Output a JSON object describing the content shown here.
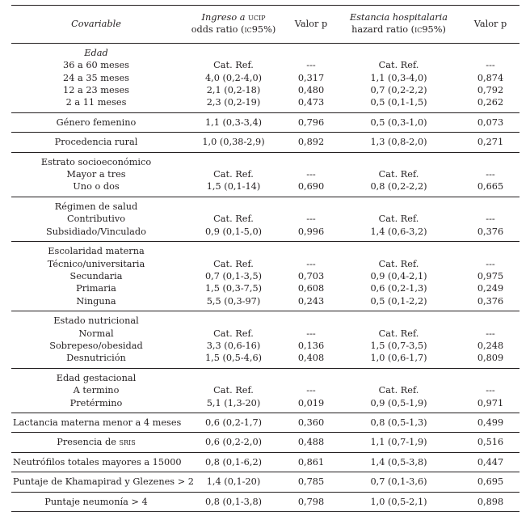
{
  "header": {
    "covariable": "Covariable",
    "ingreso_line1_a": "Ingreso a",
    "ingreso_line1_b": "ucip",
    "ingreso_line2_a": "odds ratio (",
    "ingreso_line2_b": "ic",
    "ingreso_line2_c": "95%)",
    "valor_p": "Valor p",
    "estancia_line1": "Estancia hospitalaria",
    "estancia_line2_a": "hazard ratio (",
    "estancia_line2_b": "ic",
    "estancia_line2_c": "95%)",
    "valor_p2": "Valor p"
  },
  "groups": [
    {
      "rows": [
        {
          "label": "Edad",
          "italic": true,
          "or": "",
          "p1": "",
          "hr": "",
          "p2": ""
        },
        {
          "label": "36 a 60 meses",
          "or": "Cat. Ref.",
          "p1": "---",
          "hr": "Cat. Ref.",
          "p2": "---"
        },
        {
          "label": "24 a 35 meses",
          "or": "4,0 (0,2-4,0)",
          "p1": "0,317",
          "hr": "1,1 (0,3-4,0)",
          "p2": "0,874"
        },
        {
          "label": "12 a 23 meses",
          "or": "2,1 (0,2-18)",
          "p1": "0,480",
          "hr": "0,7 (0,2-2,2)",
          "p2": "0,792"
        },
        {
          "label": "2 a 11 meses",
          "or": "2,3 (0,2-19)",
          "p1": "0,473",
          "hr": "0,5 (0,1-1,5)",
          "p2": "0,262"
        }
      ]
    },
    {
      "rows": [
        {
          "label": "Género femenino",
          "or": "1,1 (0,3-3,4)",
          "p1": "0,796",
          "hr": "0,5 (0,3-1,0)",
          "p2": "0,073"
        }
      ]
    },
    {
      "rows": [
        {
          "label": "Procedencia rural",
          "or": "1,0 (0,38-2,9)",
          "p1": "0,892",
          "hr": "1,3 (0,8-2,0)",
          "p2": "0,271"
        }
      ]
    },
    {
      "rows": [
        {
          "label": "Estrato socioeconómico",
          "or": "",
          "p1": "",
          "hr": "",
          "p2": ""
        },
        {
          "label": "Mayor a tres",
          "or": "Cat. Ref.",
          "p1": "---",
          "hr": "Cat. Ref.",
          "p2": "---"
        },
        {
          "label": "Uno o dos",
          "or": "1,5 (0,1-14)",
          "p1": "0,690",
          "hr": "0,8 (0,2-2,2)",
          "p2": "0,665"
        }
      ]
    },
    {
      "rows": [
        {
          "label": "Régimen de salud",
          "or": "",
          "p1": "",
          "hr": "",
          "p2": ""
        },
        {
          "label": "Contributivo",
          "or": "Cat. Ref.",
          "p1": "---",
          "hr": "Cat. Ref.",
          "p2": "---"
        },
        {
          "label": "Subsidiado/Vinculado",
          "or": "0,9 (0,1-5,0)",
          "p1": "0,996",
          "hr": "1,4 (0,6-3,2)",
          "p2": "0,376"
        }
      ]
    },
    {
      "rows": [
        {
          "label": "Escolaridad materna",
          "or": "",
          "p1": "",
          "hr": "",
          "p2": ""
        },
        {
          "label": "Técnico/universitaria",
          "or": "Cat. Ref.",
          "p1": "---",
          "hr": "Cat. Ref.",
          "p2": "---"
        },
        {
          "label": "Secundaria",
          "or": "0,7 (0,1-3,5)",
          "p1": "0,703",
          "hr": "0,9 (0,4-2,1)",
          "p2": "0,975"
        },
        {
          "label": "Primaria",
          "or": "1,5 (0,3-7,5)",
          "p1": "0,608",
          "hr": "0,6 (0,2-1,3)",
          "p2": "0,249"
        },
        {
          "label": "Ninguna",
          "or": "5,5 (0,3-97)",
          "p1": "0,243",
          "hr": "0,5 (0,1-2,2)",
          "p2": "0,376"
        }
      ]
    },
    {
      "rows": [
        {
          "label": "Estado nutricional",
          "or": "",
          "p1": "",
          "hr": "",
          "p2": ""
        },
        {
          "label": "Normal",
          "or": "Cat. Ref.",
          "p1": "---",
          "hr": "Cat. Ref.",
          "p2": "---"
        },
        {
          "label": "Sobrepeso/obesidad",
          "or": "3,3 (0,6-16)",
          "p1": "0,136",
          "hr": "1,5 (0,7-3,5)",
          "p2": "0,248"
        },
        {
          "label": "Desnutrición",
          "or": "1,5 (0,5-4,6)",
          "p1": "0,408",
          "hr": "1,0 (0,6-1,7)",
          "p2": "0,809"
        }
      ]
    },
    {
      "rows": [
        {
          "label": "Edad gestacional",
          "or": "",
          "p1": "",
          "hr": "",
          "p2": ""
        },
        {
          "label": "A termino",
          "or": "Cat. Ref.",
          "p1": "---",
          "hr": "Cat. Ref.",
          "p2": "---"
        },
        {
          "label": "Pretérmino",
          "or": "5,1 (1,3-20)",
          "p1": "0,019",
          "hr": "0,9 (0,5-1,9)",
          "p2": "0,971"
        }
      ]
    },
    {
      "rows": [
        {
          "label": "Lactancia materna menor a 4 meses",
          "or": "0,6 (0,2-1,7)",
          "p1": "0,360",
          "hr": "0,8 (0,5-1,3)",
          "p2": "0,499"
        }
      ]
    },
    {
      "rows": [
        {
          "label_a": "Presencia de ",
          "label_sc": "sris",
          "or": "0,6 (0,2-2,0)",
          "p1": "0,488",
          "hr": "1,1 (0,7-1,9)",
          "p2": "0,516"
        }
      ]
    },
    {
      "rows": [
        {
          "label": "Neutrófilos totales mayores a 15000",
          "or": "0,8 (0,1-6,2)",
          "p1": "0,861",
          "hr": "1,4 (0,5-3,8)",
          "p2": "0,447"
        }
      ]
    },
    {
      "rows": [
        {
          "label": "Puntaje de Khamapirad y Glezenes > 2",
          "or": "1,4 (0,1-20)",
          "p1": "0,785",
          "hr": "0,7 (0,1-3,6)",
          "p2": "0,695"
        }
      ]
    },
    {
      "rows": [
        {
          "label": "Puntaje neumonía > 4",
          "or": "0,8 (0,1-3,8)",
          "p1": "0,798",
          "hr": "1,0 (0,5-2,1)",
          "p2": "0,898"
        }
      ]
    }
  ]
}
